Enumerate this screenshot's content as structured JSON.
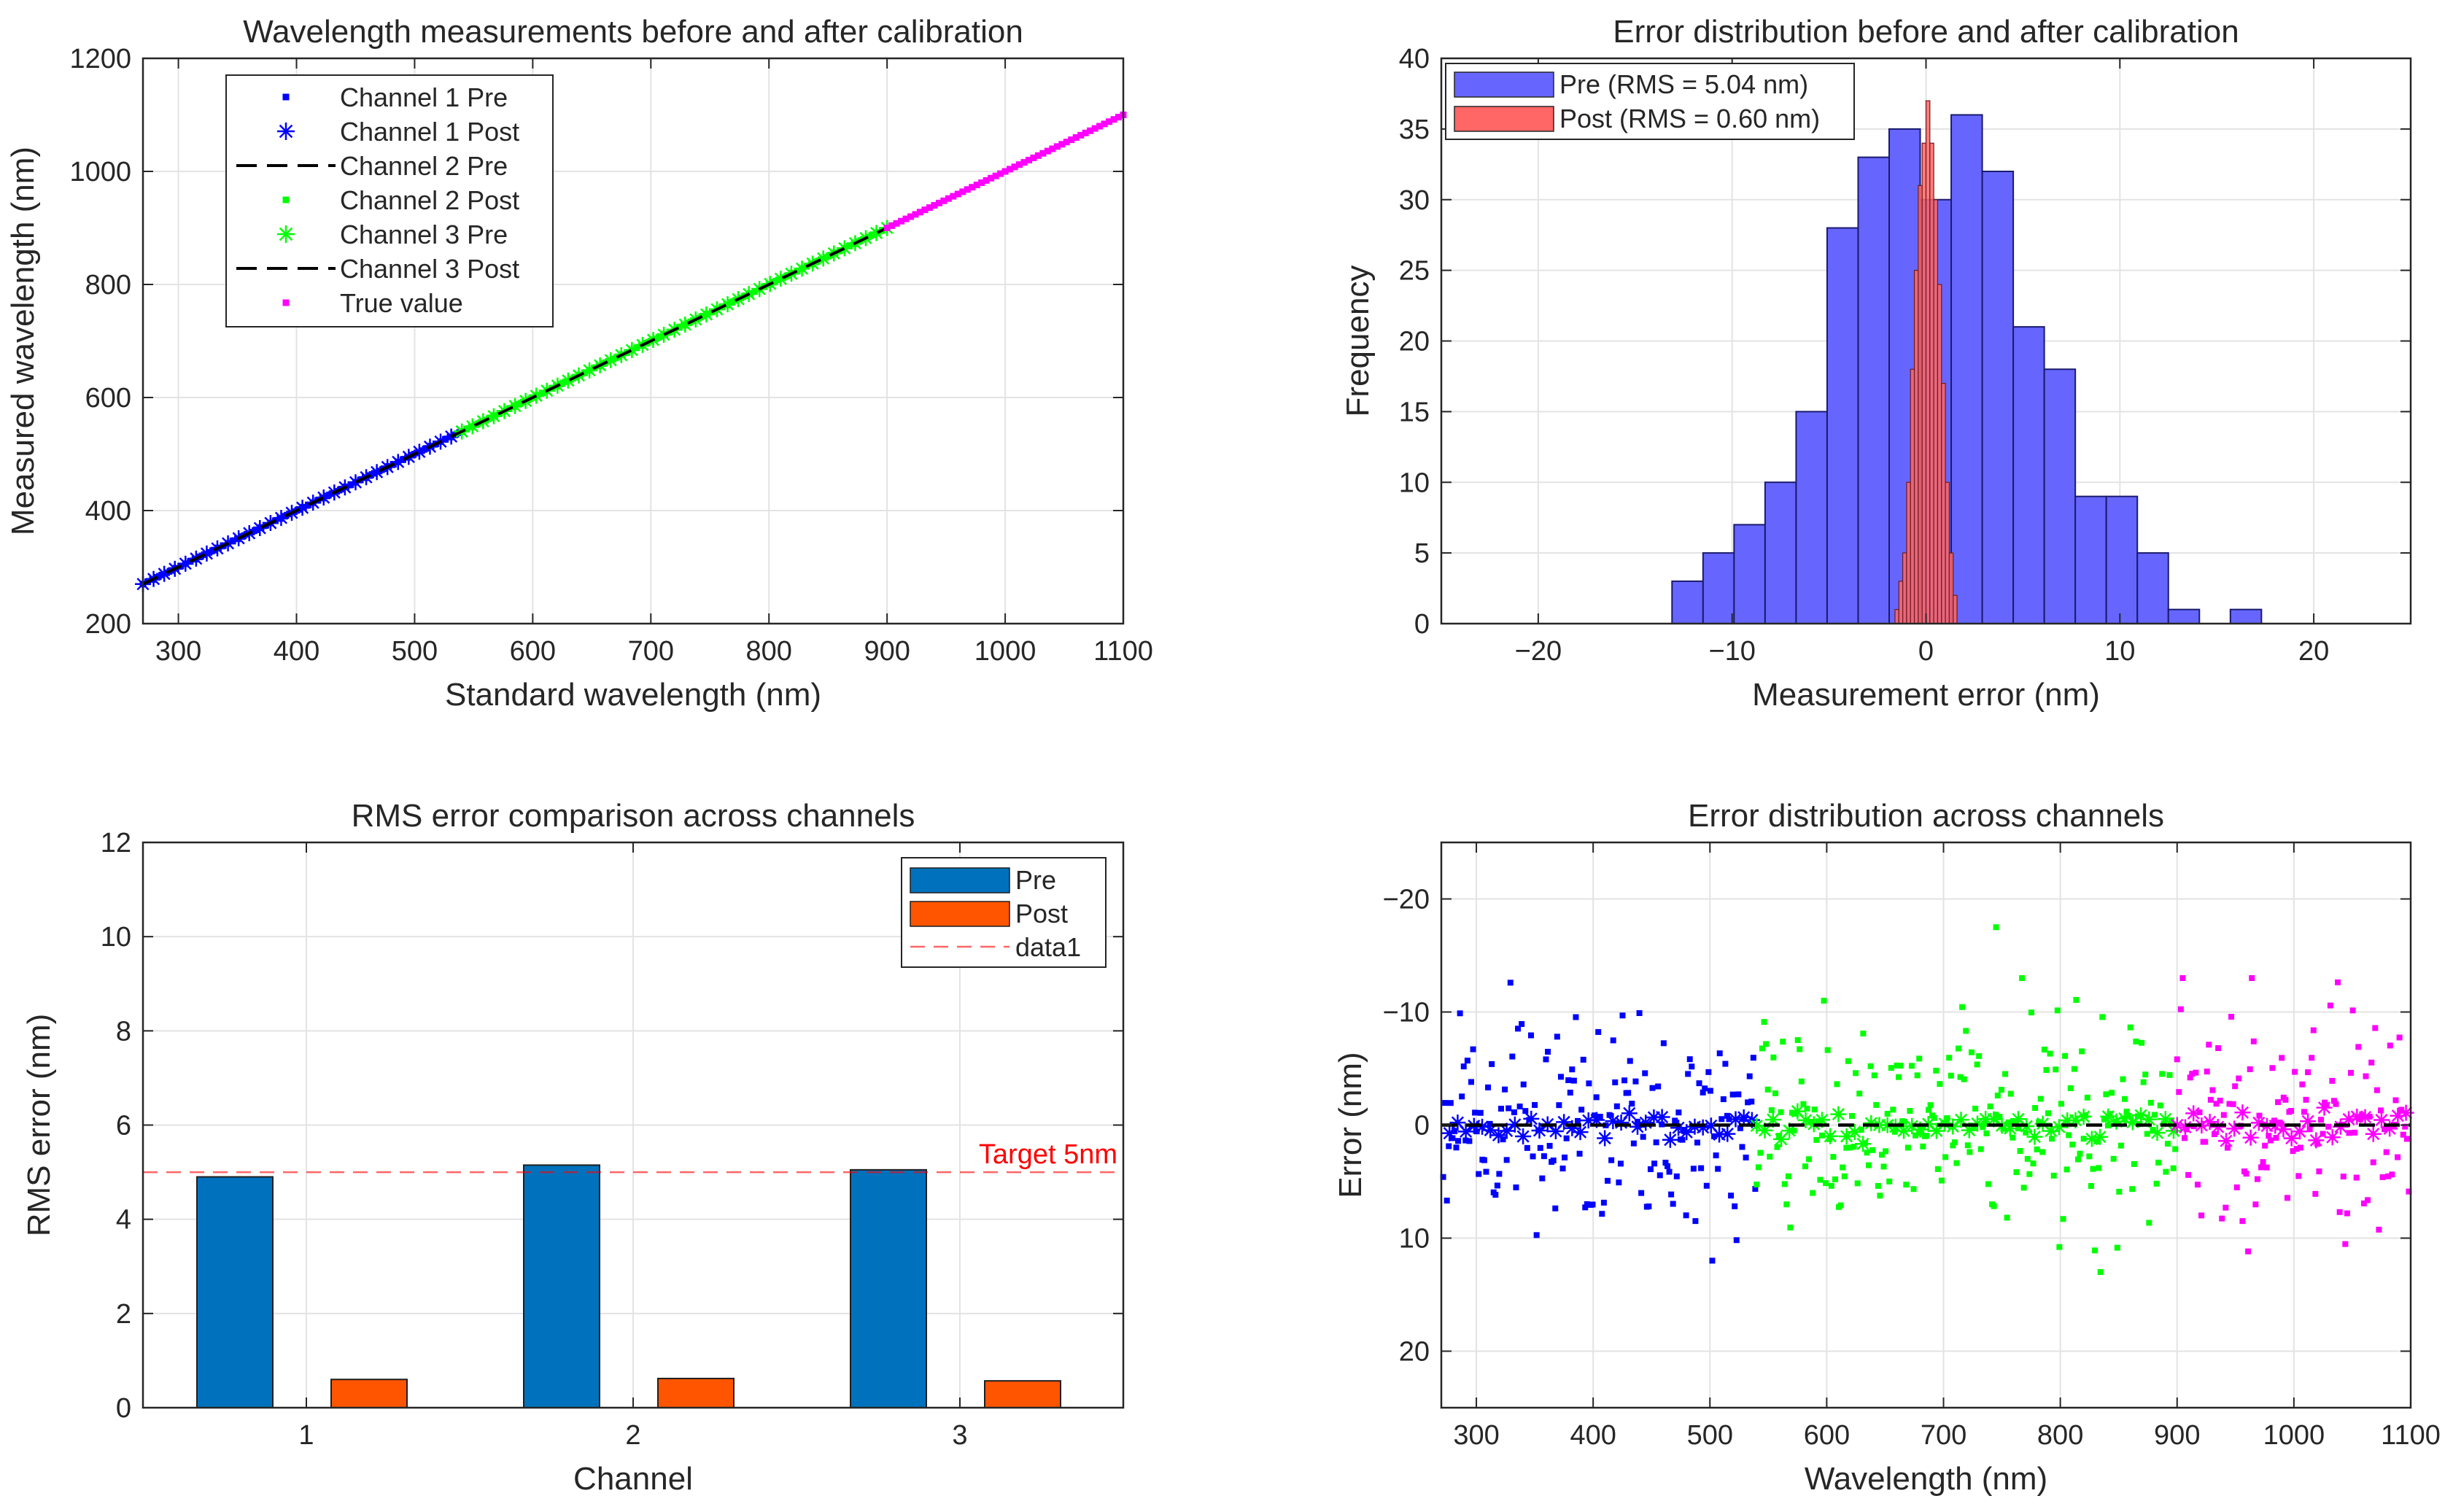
{
  "chart_data": [
    {
      "type": "line",
      "title": "Wavelength measurements before and after calibration",
      "xlabel": "Standard wavelength (nm)",
      "ylabel": "Measured wavelength (nm)",
      "xlim": [
        270,
        1100
      ],
      "ylim": [
        200,
        1200
      ],
      "xticks": [
        300,
        400,
        500,
        600,
        700,
        800,
        900,
        1000,
        1100
      ],
      "yticks": [
        200,
        400,
        600,
        800,
        1000,
        1200
      ],
      "grid": true,
      "legend_position": "top-left",
      "series": [
        {
          "name": "Channel 1 Pre",
          "marker": "dot",
          "color": "#0000ff",
          "x": [
            270,
            540
          ],
          "y": [
            270,
            540
          ]
        },
        {
          "name": "Channel 1 Post",
          "marker": "asterisk",
          "color": "#0000ff",
          "x": [
            270,
            540
          ],
          "y": [
            270,
            540
          ]
        },
        {
          "name": "Channel 2 Pre",
          "marker": "dashed-line",
          "color": "#000000",
          "x": [
            270,
            1100
          ],
          "y": [
            270,
            1100
          ]
        },
        {
          "name": "Channel 2 Post",
          "marker": "dot",
          "color": "#00ff00",
          "x": [
            540,
            900
          ],
          "y": [
            540,
            900
          ]
        },
        {
          "name": "Channel 3 Pre",
          "marker": "asterisk",
          "color": "#00ff00",
          "x": [
            540,
            900
          ],
          "y": [
            540,
            900
          ]
        },
        {
          "name": "Channel 3 Post",
          "marker": "dashed-line",
          "color": "#000000",
          "x": [
            270,
            1100
          ],
          "y": [
            270,
            1100
          ]
        },
        {
          "name": "True value",
          "marker": "dot",
          "color": "#ff00ff",
          "x": [
            900,
            1100
          ],
          "y": [
            900,
            1100
          ]
        }
      ]
    },
    {
      "type": "bar",
      "title": "Error distribution before and after calibration",
      "xlabel": "Measurement error (nm)",
      "ylabel": "Frequency",
      "xlim": [
        -25,
        25
      ],
      "ylim": [
        0,
        40
      ],
      "xticks": [
        -20,
        -10,
        0,
        10,
        20
      ],
      "yticks": [
        0,
        5,
        10,
        15,
        20,
        25,
        30,
        35,
        40
      ],
      "grid": true,
      "legend_position": "top-left",
      "series": [
        {
          "name": "Pre (RMS = 5.04 nm)",
          "color": "#6666ff",
          "bin_edges": [
            -13.1,
            -11.5,
            -9.9,
            -8.3,
            -6.7,
            -5.1,
            -3.5,
            -1.9,
            -0.3,
            1.3,
            2.9,
            4.5,
            6.1,
            7.7,
            9.3,
            10.9,
            12.5,
            14.1,
            15.7,
            17.3
          ],
          "counts": [
            3,
            5,
            7,
            10,
            15,
            28,
            33,
            35,
            30,
            36,
            32,
            21,
            18,
            9,
            9,
            5,
            1,
            0,
            1
          ]
        },
        {
          "name": "Post (RMS = 0.60 nm)",
          "color": "#ff6666",
          "bin_edges": [
            -1.6,
            -1.4,
            -1.2,
            -1.0,
            -0.8,
            -0.6,
            -0.4,
            -0.2,
            0.0,
            0.2,
            0.4,
            0.6,
            0.8,
            1.0,
            1.2,
            1.4,
            1.6
          ],
          "counts": [
            1,
            3,
            5,
            10,
            18,
            25,
            31,
            34,
            37,
            34,
            30,
            24,
            17,
            10,
            5,
            2
          ]
        }
      ]
    },
    {
      "type": "bar",
      "title": "RMS error comparison across channels",
      "xlabel": "Channel",
      "ylabel": "RMS error (nm)",
      "categories": [
        "1",
        "2",
        "3"
      ],
      "ylim": [
        0,
        12
      ],
      "yticks": [
        0,
        2,
        4,
        6,
        8,
        10,
        12
      ],
      "grid": true,
      "legend_position": "top-right",
      "series": [
        {
          "name": "Pre",
          "color": "#0072bd",
          "values": [
            4.9,
            5.15,
            5.05
          ]
        },
        {
          "name": "Post",
          "color": "#ff5500",
          "values": [
            0.6,
            0.62,
            0.57
          ]
        }
      ],
      "reference_line": {
        "name": "data1",
        "value": 5,
        "color": "#ff0000"
      },
      "annotation": "Target 5nm"
    },
    {
      "type": "scatter",
      "title": "Error distribution across channels",
      "xlabel": "Wavelength (nm)",
      "ylabel": "Error (nm)",
      "xlim": [
        270,
        1100
      ],
      "ylim": [
        25,
        -25
      ],
      "y_reversed": true,
      "xticks": [
        300,
        400,
        500,
        600,
        700,
        800,
        900,
        1000,
        1100
      ],
      "yticks": [
        -20,
        -10,
        0,
        10,
        20
      ],
      "grid": true,
      "series": [
        {
          "name": "Channel 1",
          "color": "#0000ff",
          "x_range": [
            270,
            540
          ]
        },
        {
          "name": "Channel 2",
          "color": "#00ff00",
          "x_range": [
            540,
            900
          ]
        },
        {
          "name": "Channel 3",
          "color": "#ff00ff",
          "x_range": [
            900,
            1100
          ]
        }
      ],
      "zero_line": {
        "value": 0,
        "style": "dashed",
        "color": "#000000"
      }
    }
  ]
}
